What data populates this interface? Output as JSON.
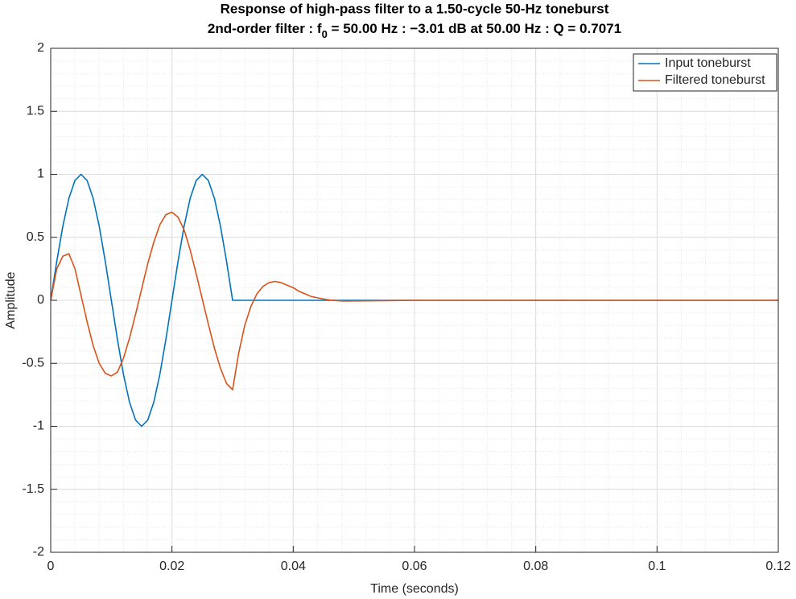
{
  "chart_data": {
    "type": "line",
    "title": "Response of high-pass filter to a 1.50-cycle 50-Hz toneburst",
    "subtitle": [
      "2nd-order filter : f",
      "0",
      " = 50.00 Hz : −3.01 dB at 50.00 Hz : Q = 0.7071"
    ],
    "x_label": "Time (seconds)",
    "y_label": "Amplitude",
    "x": [
      0,
      0.001,
      0.002,
      0.003,
      0.004,
      0.005,
      0.006,
      0.007,
      0.008,
      0.009,
      0.01,
      0.011,
      0.012,
      0.013,
      0.014,
      0.015,
      0.016,
      0.017,
      0.018,
      0.019,
      0.02,
      0.021,
      0.022,
      0.023,
      0.024,
      0.025,
      0.026,
      0.027,
      0.028,
      0.029,
      0.03,
      0.031,
      0.032,
      0.033,
      0.034,
      0.035,
      0.036,
      0.037,
      0.038,
      0.039,
      0.04,
      0.041,
      0.042,
      0.043,
      0.044,
      0.045,
      0.046,
      0.047,
      0.048,
      0.049,
      0.05,
      0.055,
      0.06,
      0.12
    ],
    "series": [
      {
        "name": "Input toneburst",
        "color": "#0072bd",
        "values": [
          0,
          0.309,
          0.588,
          0.809,
          0.951,
          1,
          0.951,
          0.809,
          0.588,
          0.309,
          0,
          -0.309,
          -0.588,
          -0.809,
          -0.951,
          -1,
          -0.951,
          -0.809,
          -0.588,
          -0.309,
          0,
          0.309,
          0.588,
          0.809,
          0.951,
          1,
          0.951,
          0.809,
          0.588,
          0.309,
          0,
          0,
          0,
          0,
          0,
          0,
          0,
          0,
          0,
          0,
          0,
          0,
          0,
          0,
          0,
          0,
          0,
          0,
          0,
          0,
          0,
          0,
          0,
          0
        ]
      },
      {
        "name": "Filtered toneburst",
        "color": "#d95319",
        "values": [
          0,
          0.25,
          0.35,
          0.37,
          0.25,
          0.04,
          -0.17,
          -0.36,
          -0.5,
          -0.58,
          -0.6,
          -0.57,
          -0.46,
          -0.3,
          -0.11,
          0.09,
          0.29,
          0.46,
          0.6,
          0.68,
          0.7,
          0.66,
          0.56,
          0.4,
          0.21,
          0.01,
          -0.19,
          -0.38,
          -0.54,
          -0.66,
          -0.71,
          -0.42,
          -0.2,
          -0.05,
          0.05,
          0.11,
          0.14,
          0.15,
          0.14,
          0.12,
          0.1,
          0.07,
          0.05,
          0.03,
          0.02,
          0.01,
          0.003,
          -0.002,
          -0.005,
          -0.006,
          -0.005,
          -0.003,
          0,
          0
        ]
      }
    ],
    "xlim": [
      0,
      0.12
    ],
    "ylim": [
      -2,
      2
    ],
    "xticks": [
      0,
      0.02,
      0.04,
      0.06,
      0.08,
      0.1,
      0.12
    ],
    "yticks": [
      -2,
      -1.5,
      -1,
      -0.5,
      0,
      0.5,
      1,
      1.5,
      2
    ],
    "grid": true,
    "minor_grid_step": [
      0.004,
      0.1
    ],
    "legend": "upper-right"
  }
}
